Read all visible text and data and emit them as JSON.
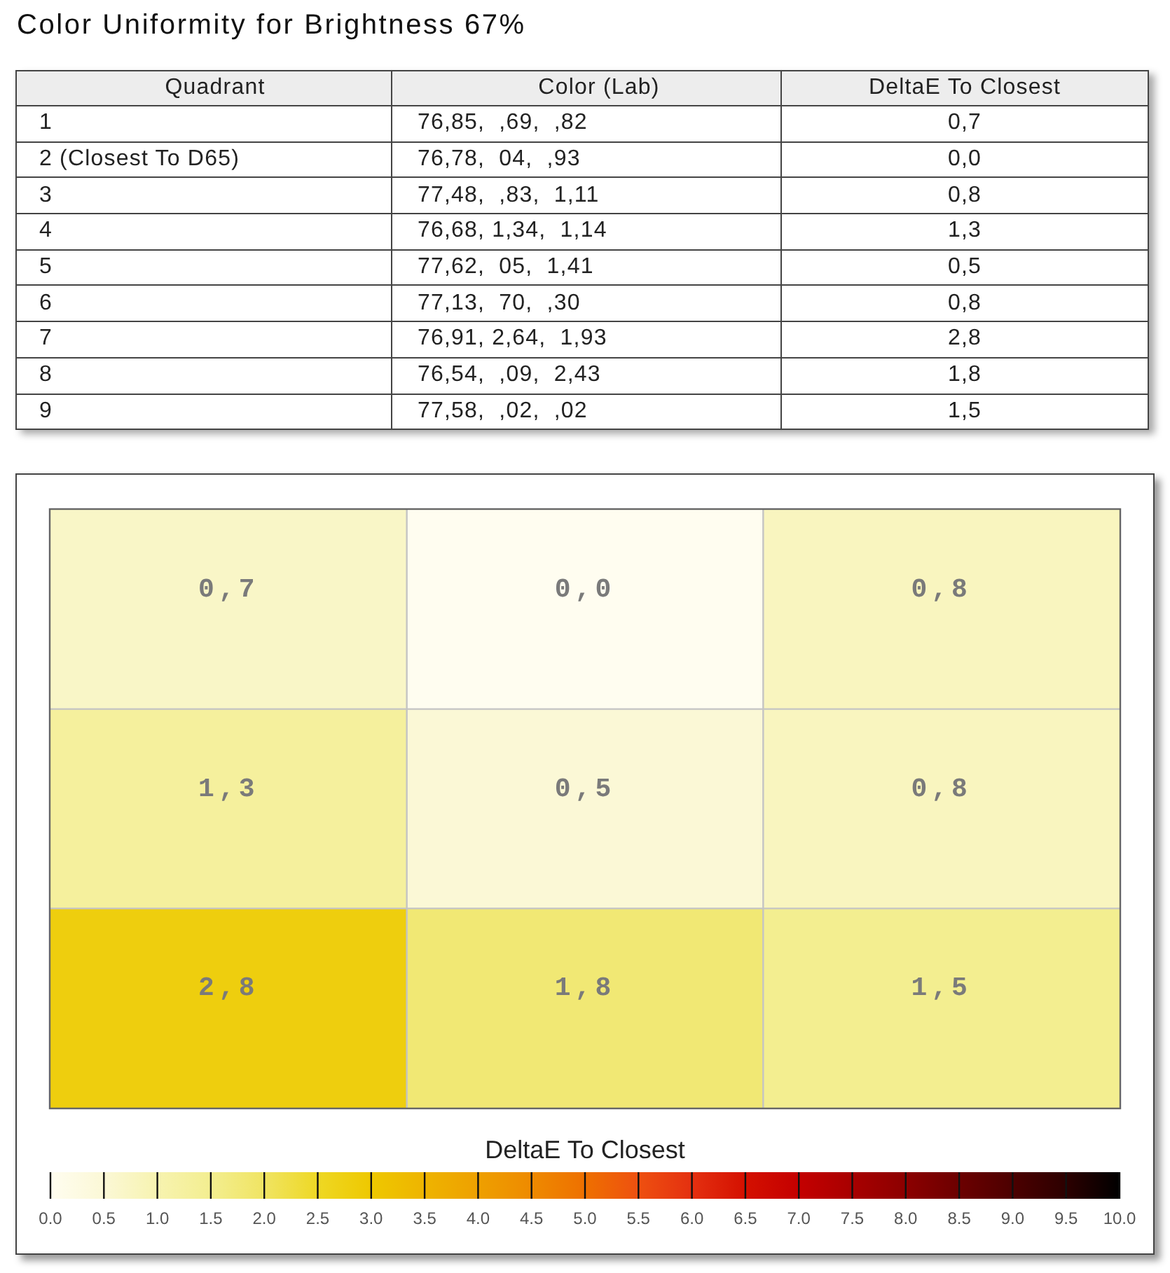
{
  "chart_data": [
    {
      "type": "other",
      "title": "Color Uniformity for Brightness 67%",
      "annotations": [
        "Quadrant",
        "Color (Lab)",
        "DeltaE To Closest",
        "1",
        "76,85,  ,69,  ,82",
        "0,7",
        "2 (Closest To D65)",
        "76,78,  04,  ,93",
        "0,0",
        "3",
        "77,48,  ,83,  1,11",
        "0,8",
        "4",
        "76,68, 1,34,  1,14",
        "1,3",
        "5",
        "77,62,  05,  1,41",
        "0,5",
        "6",
        "77,13,  70,  ,30",
        "0,8",
        "7",
        "76,91, 2,64,  1,93",
        "2,8",
        "8",
        "76,54,  ,09,  2,43",
        "1,8",
        "9",
        "77,58,  ,02,  ,02",
        "1,5"
      ]
    },
    {
      "type": "heatmap",
      "categories": [
        null,
        null,
        null
      ],
      "y_categories": [
        null,
        null,
        null
      ],
      "cells": [
        [
          0.7,
          0.0,
          0.8
        ],
        [
          1.3,
          0.5,
          0.8
        ],
        [
          2.8,
          1.8,
          1.5
        ]
      ],
      "cell_labels": [
        [
          "0,7",
          "0,0",
          "0,8"
        ],
        [
          "1,3",
          "0,5",
          "0,8"
        ],
        [
          "2,8",
          "1,8",
          "1,5"
        ]
      ],
      "clim": [
        0,
        10
      ],
      "cticks": [
        {
          "value": 0,
          "label": "0.0"
        },
        0.5,
        {
          "value": 1,
          "label": "1.0"
        },
        1.5,
        {
          "value": 2,
          "label": "2.0"
        },
        2.5,
        {
          "value": 3,
          "label": "3.0"
        },
        3.5,
        {
          "value": 4,
          "label": "4.0"
        },
        4.5,
        {
          "value": 5,
          "label": "5.0"
        },
        5.5,
        {
          "value": 6,
          "label": "6.0"
        },
        6.5,
        {
          "value": 7,
          "label": "7.0"
        },
        7.5,
        {
          "value": 8,
          "label": "8.0"
        },
        8.5,
        {
          "value": 9,
          "label": "9.0"
        },
        9.5,
        {
          "value": 10,
          "label": "10.0"
        }
      ],
      "clabel": "DeltaE To Closest",
      "grid": true
    }
  ]
}
